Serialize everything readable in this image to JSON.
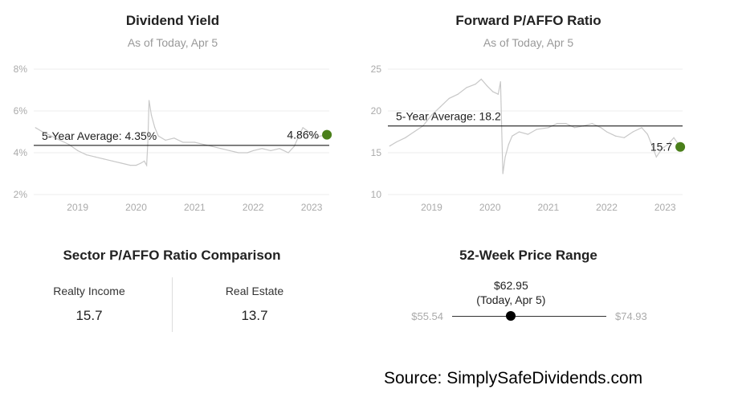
{
  "dividend_yield": {
    "title": "Dividend Yield",
    "subtitle": "As of Today, Apr 5",
    "average_label": "5-Year Average: 4.35%",
    "current_label": "4.86%",
    "chart_data": {
      "type": "line",
      "title": "Dividend Yield",
      "y_ticks": [
        "8%",
        "6%",
        "4%",
        "2%"
      ],
      "x_ticks": [
        "2019",
        "2020",
        "2021",
        "2022",
        "2023"
      ],
      "ylim": [
        2,
        8
      ],
      "xlim": [
        2018.25,
        2023.3
      ],
      "grid": true,
      "average": 4.35,
      "current": {
        "x": 2023.26,
        "y": 4.86
      },
      "series": [
        {
          "x": [
            2018.28,
            2018.4,
            2018.55,
            2018.7,
            2018.85,
            2019.0,
            2019.15,
            2019.3,
            2019.45,
            2019.6,
            2019.75,
            2019.9,
            2020.0,
            2020.08,
            2020.14,
            2020.18,
            2020.2,
            2020.22,
            2020.26,
            2020.32,
            2020.38,
            2020.5,
            2020.65,
            2020.8,
            2021.0,
            2021.15,
            2021.3,
            2021.45,
            2021.6,
            2021.75,
            2021.9,
            2022.0,
            2022.15,
            2022.3,
            2022.45,
            2022.6,
            2022.7,
            2022.78,
            2022.85,
            2022.95,
            2023.05,
            2023.15,
            2023.26
          ],
          "y": [
            5.2,
            5.0,
            4.8,
            4.6,
            4.4,
            4.1,
            3.9,
            3.8,
            3.7,
            3.6,
            3.5,
            3.4,
            3.4,
            3.5,
            3.6,
            3.4,
            4.5,
            6.5,
            5.8,
            5.2,
            4.8,
            4.6,
            4.7,
            4.5,
            4.5,
            4.4,
            4.3,
            4.2,
            4.1,
            4.0,
            4.0,
            4.1,
            4.2,
            4.1,
            4.2,
            4.0,
            4.3,
            4.8,
            5.2,
            5.0,
            4.7,
            4.8,
            4.86
          ]
        }
      ]
    }
  },
  "forward_p_affo": {
    "title": "Forward P/AFFO Ratio",
    "subtitle": "As of Today, Apr 5",
    "average_label": "5-Year Average: 18.2",
    "current_label": "15.7",
    "chart_data": {
      "type": "line",
      "title": "Forward P/AFFO Ratio",
      "y_ticks": [
        "25",
        "20",
        "15",
        "10"
      ],
      "x_ticks": [
        "2019",
        "2020",
        "2021",
        "2022",
        "2023"
      ],
      "ylim": [
        10,
        25
      ],
      "xlim": [
        2018.25,
        2023.3
      ],
      "grid": true,
      "average": 18.2,
      "current": {
        "x": 2023.26,
        "y": 15.7
      },
      "series": [
        {
          "x": [
            2018.28,
            2018.4,
            2018.55,
            2018.7,
            2018.85,
            2019.0,
            2019.15,
            2019.3,
            2019.45,
            2019.6,
            2019.75,
            2019.85,
            2019.95,
            2020.05,
            2020.14,
            2020.18,
            2020.2,
            2020.22,
            2020.26,
            2020.32,
            2020.38,
            2020.5,
            2020.65,
            2020.8,
            2021.0,
            2021.15,
            2021.3,
            2021.45,
            2021.6,
            2021.75,
            2021.9,
            2022.0,
            2022.15,
            2022.3,
            2022.45,
            2022.6,
            2022.7,
            2022.78,
            2022.85,
            2022.95,
            2023.05,
            2023.15,
            2023.26
          ],
          "y": [
            15.8,
            16.3,
            16.8,
            17.5,
            18.2,
            19.5,
            20.5,
            21.5,
            22.0,
            22.8,
            23.2,
            23.8,
            23.0,
            22.3,
            22.0,
            23.5,
            18.0,
            12.5,
            14.5,
            16.0,
            17.0,
            17.5,
            17.2,
            17.8,
            18.0,
            18.5,
            18.5,
            18.0,
            18.2,
            18.5,
            18.0,
            17.5,
            17.0,
            16.8,
            17.5,
            18.0,
            17.2,
            15.8,
            14.5,
            15.5,
            16.0,
            16.8,
            15.7
          ]
        }
      ]
    }
  },
  "sector_comparison": {
    "title": "Sector P/AFFO Ratio Comparison",
    "items": [
      {
        "name": "Realty Income",
        "value": "15.7"
      },
      {
        "name": "Real Estate",
        "value": "13.7"
      }
    ]
  },
  "price_range": {
    "title": "52-Week Price Range",
    "low_label": "$55.54",
    "high_label": "$74.93",
    "current_price": "$62.95",
    "current_note": "(Today, Apr 5)",
    "low": 55.54,
    "high": 74.93,
    "current": 62.95
  },
  "source": "Source: SimplySafeDividends.com",
  "colors": {
    "series_line": "#c8c8c8",
    "average_line": "#000000",
    "current_dot": "#4a7f1a",
    "grid": "#eeeeee",
    "muted_text": "#aaaaaa"
  }
}
